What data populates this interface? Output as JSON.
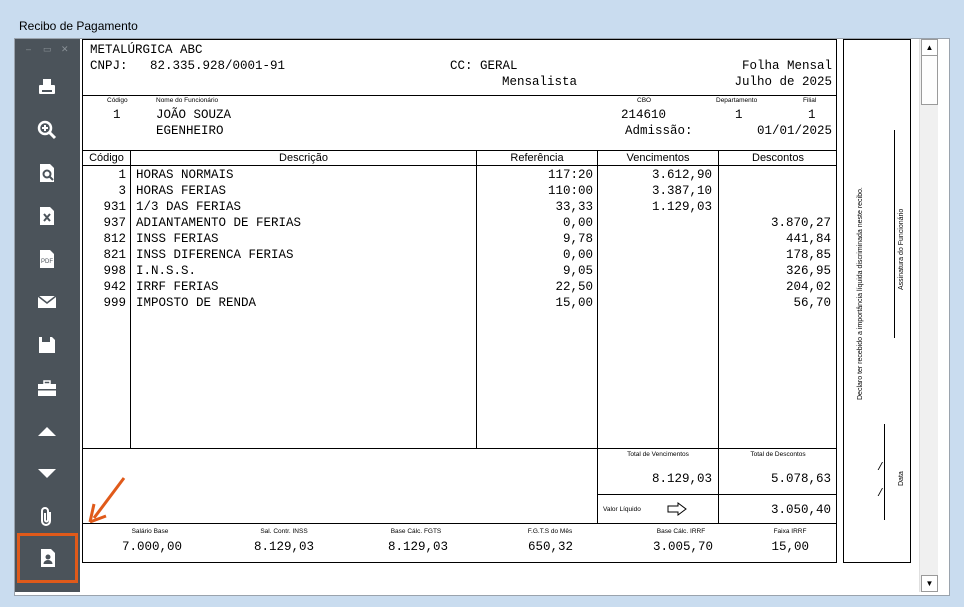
{
  "window": {
    "title": "Recibo de Pagamento"
  },
  "toolbar": {
    "controls": [
      "–",
      "▭",
      "✕"
    ],
    "buttons": [
      {
        "name": "print-icon"
      },
      {
        "name": "zoom-in-icon"
      },
      {
        "name": "print-preview-icon"
      },
      {
        "name": "excel-export-icon"
      },
      {
        "name": "pdf-export-icon",
        "label": "PDF"
      },
      {
        "name": "email-icon"
      },
      {
        "name": "save-icon"
      },
      {
        "name": "briefcase-icon"
      },
      {
        "name": "arrow-up-icon"
      },
      {
        "name": "arrow-down-icon"
      },
      {
        "name": "paperclip-icon"
      },
      {
        "name": "employee-document-icon"
      }
    ],
    "accent": "#e05a1a"
  },
  "header": {
    "company": "METALÚRGICA ABC",
    "cnpj_label": "CNPJ:",
    "cnpj": "82.335.928/0001-91",
    "cc": "CC: GERAL",
    "type": "Mensalista",
    "sheet": "Folha Mensal",
    "period": "Julho de 2025"
  },
  "employee": {
    "labels": {
      "code": "Código",
      "name": "Nome do Funcionário",
      "cbo": "CBO",
      "department": "Departamento",
      "branch": "Filial"
    },
    "code": "1",
    "name": "JOÃO SOUZA",
    "role": "EGENHEIRO",
    "cbo": "214610",
    "department": "1",
    "branch": "1",
    "admission_label": "Admissão:",
    "admission": "01/01/2025"
  },
  "table": {
    "headers": {
      "code": "Código",
      "description": "Descrição",
      "reference": "Referência",
      "earnings": "Vencimentos",
      "deductions": "Descontos"
    },
    "rows": [
      {
        "code": "1",
        "description": "HORAS NORMAIS",
        "reference": "117:20",
        "earnings": "3.612,90",
        "deductions": ""
      },
      {
        "code": "3",
        "description": "HORAS FERIAS",
        "reference": "110:00",
        "earnings": "3.387,10",
        "deductions": ""
      },
      {
        "code": "931",
        "description": "1/3 DAS FERIAS",
        "reference": "33,33",
        "earnings": "1.129,03",
        "deductions": ""
      },
      {
        "code": "937",
        "description": "ADIANTAMENTO DE FERIAS",
        "reference": "0,00",
        "earnings": "",
        "deductions": "3.870,27"
      },
      {
        "code": "812",
        "description": "INSS FERIAS",
        "reference": "9,78",
        "earnings": "",
        "deductions": "441,84"
      },
      {
        "code": "821",
        "description": "INSS DIFERENCA FERIAS",
        "reference": "0,00",
        "earnings": "",
        "deductions": "178,85"
      },
      {
        "code": "998",
        "description": "I.N.S.S.",
        "reference": "9,05",
        "earnings": "",
        "deductions": "326,95"
      },
      {
        "code": "942",
        "description": "IRRF FERIAS",
        "reference": "22,50",
        "earnings": "",
        "deductions": "204,02"
      },
      {
        "code": "999",
        "description": "IMPOSTO DE RENDA",
        "reference": "15,00",
        "earnings": "",
        "deductions": "56,70"
      }
    ]
  },
  "totals": {
    "earnings_label": "Total de Vencimentos",
    "earnings": "8.129,03",
    "deductions_label": "Total de Descontos",
    "deductions": "5.078,63",
    "net_label": "Valor Líquido",
    "net": "3.050,40"
  },
  "bases": [
    {
      "label": "Salário Base",
      "value": "7.000,00"
    },
    {
      "label": "Sal. Contr. INSS",
      "value": "8.129,03"
    },
    {
      "label": "Base Cálc. FGTS",
      "value": "8.129,03"
    },
    {
      "label": "F.G.T.S do Mês",
      "value": "650,32"
    },
    {
      "label": "Base Cálc. IRRF",
      "value": "3.005,70"
    },
    {
      "label": "Faixa IRRF",
      "value": "15,00"
    }
  ],
  "signature": {
    "declaration": "Declaro ter recebido a importância líquida discriminada neste recibo.",
    "signature_label": "Assinatura do Funcionário",
    "date_label": "Data",
    "date_marks": "/"
  }
}
